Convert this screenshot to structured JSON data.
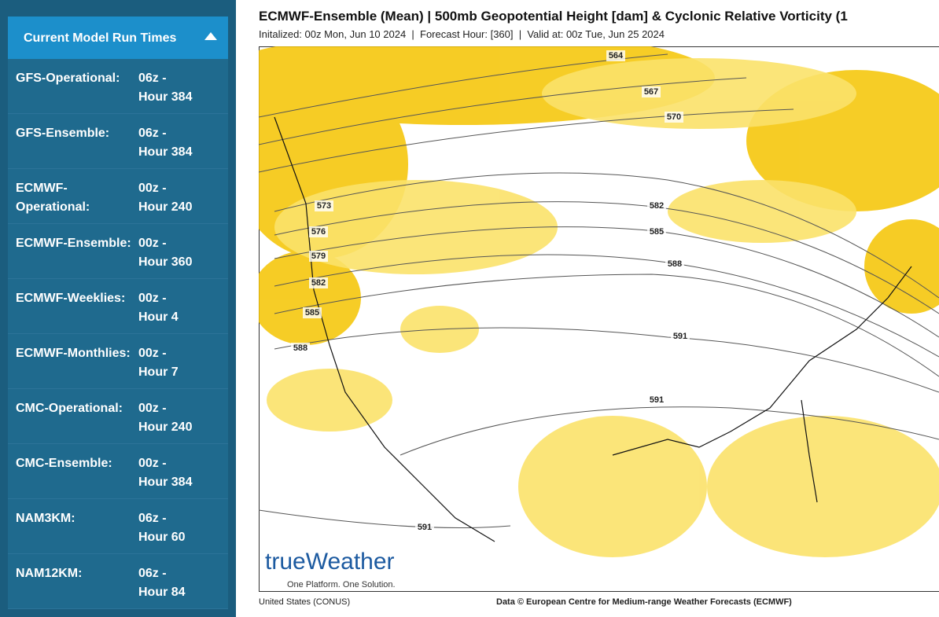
{
  "sidebar": {
    "header": "Current Model Run Times",
    "rows": [
      {
        "model": "GFS-Operational:",
        "time": "06z -",
        "hour": "Hour 384"
      },
      {
        "model": "GFS-Ensemble:",
        "time": "06z -",
        "hour": "Hour 384"
      },
      {
        "model": "ECMWF-Operational:",
        "time": "00z -",
        "hour": "Hour 240"
      },
      {
        "model": "ECMWF-Ensemble:",
        "time": "00z -",
        "hour": "Hour 360"
      },
      {
        "model": "ECMWF-Weeklies:",
        "time": "00z -",
        "hour": "Hour 4"
      },
      {
        "model": "ECMWF-Monthlies:",
        "time": "00z -",
        "hour": "Hour 7"
      },
      {
        "model": "CMC-Operational:",
        "time": "00z -",
        "hour": "Hour 240"
      },
      {
        "model": "CMC-Ensemble:",
        "time": "00z -",
        "hour": "Hour 384"
      },
      {
        "model": "NAM3KM:",
        "time": "06z -",
        "hour": "Hour 60"
      },
      {
        "model": "NAM12KM:",
        "time": "06z -",
        "hour": "Hour 84"
      }
    ]
  },
  "map": {
    "title": "ECMWF-Ensemble (Mean) | 500mb Geopotential Height [dam] & Cyclonic Relative Vorticity (1",
    "subtitle": "Initalized: 00z Mon, Jun 10 2024  |  Forecast Hour: [360]  |  Valid at: 00z Tue, Jun 25 2024",
    "contour_labels": [
      "564",
      "567",
      "570",
      "573",
      "576",
      "579",
      "582",
      "585",
      "588",
      "582",
      "585",
      "588",
      "591",
      "591",
      "591"
    ],
    "logo": "trueWeather",
    "logo_tagline": "One Platform. One Solution.",
    "footer_left": "United States (CONUS)",
    "footer_right": "Data © European Centre for Medium-range Weather Forecasts (ECMWF)"
  }
}
